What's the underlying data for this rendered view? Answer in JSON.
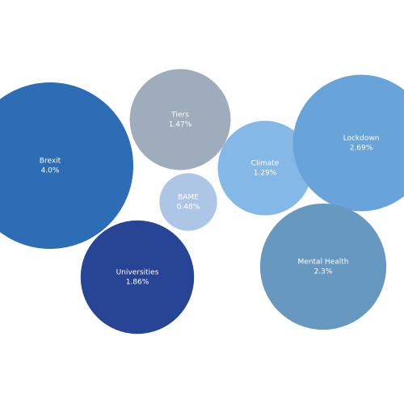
{
  "chart_data": {
    "type": "bubble",
    "categories": [
      "Brexit",
      "Tiers",
      "BAME",
      "Climate",
      "Lockdown",
      "Universities",
      "Mental Health"
    ],
    "values": [
      4.0,
      1.47,
      0.48,
      1.29,
      2.69,
      1.86,
      2.3
    ],
    "value_labels": [
      "4.0%",
      "1.47%",
      "0.48%",
      "1.29%",
      "2.69%",
      "1.86%",
      "2.3%"
    ],
    "colors": [
      "#2c6db5",
      "#9eacbc",
      "#aec6e6",
      "#84b8e6",
      "#68a3d9",
      "#274594",
      "#6698c0"
    ]
  }
}
